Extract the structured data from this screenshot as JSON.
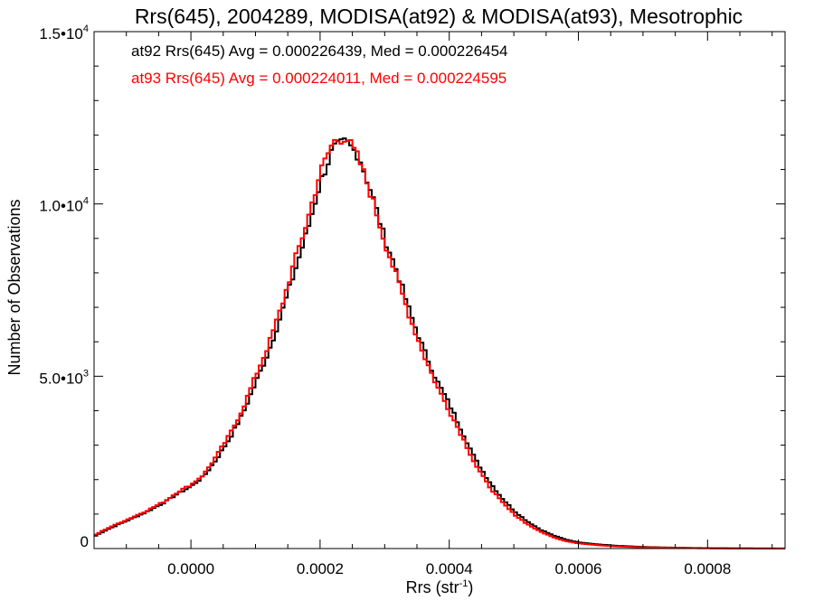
{
  "chart_data": {
    "type": "line",
    "title": "Rrs(645), 2004289, MODISA(at92) & MODISA(at93), Mesotrophic",
    "xlabel_base": "Rrs (str",
    "xlabel_sup": "-1",
    "xlabel_close": ")",
    "ylabel": "Number of Observations",
    "xlim": [
      -0.00015,
      0.00092
    ],
    "ylim": [
      0,
      15000
    ],
    "x_ticks": [
      {
        "value": 0.0,
        "label": "0.0000"
      },
      {
        "value": 0.0002,
        "label": "0.0002"
      },
      {
        "value": 0.0004,
        "label": "0.0004"
      },
      {
        "value": 0.0006,
        "label": "0.0006"
      },
      {
        "value": 0.0008,
        "label": "0.0008"
      }
    ],
    "y_ticks": [
      {
        "value": 0,
        "label": "0",
        "sup": ""
      },
      {
        "value": 5000,
        "label": "5.0•10",
        "sup": "3"
      },
      {
        "value": 10000,
        "label": "1.0•10",
        "sup": "4"
      },
      {
        "value": 15000,
        "label": "1.5•10",
        "sup": "4"
      }
    ],
    "bin_width": 5e-06,
    "x": [
      -0.00015,
      -0.00013,
      -0.0001,
      -7e-05,
      -4e-05,
      -2e-05,
      0.0,
      2e-05,
      4e-05,
      6e-05,
      8e-05,
      0.0001,
      0.00012,
      0.00014,
      0.00016,
      0.00018,
      0.0002,
      0.00022,
      0.00024,
      0.00026,
      0.00028,
      0.0003,
      0.00032,
      0.00034,
      0.00036,
      0.00038,
      0.0004,
      0.00042,
      0.00044,
      0.00046,
      0.00048,
      0.0005,
      0.00052,
      0.00054,
      0.00056,
      0.00058,
      0.0006,
      0.00063,
      0.00066,
      0.0007,
      0.00075,
      0.0008,
      0.00085,
      0.00092
    ],
    "series": [
      {
        "name": "at92",
        "color": "#000000",
        "values": [
          350,
          550,
          800,
          1050,
          1350,
          1600,
          1800,
          2100,
          2600,
          3200,
          3900,
          4800,
          5700,
          6800,
          8000,
          9200,
          10600,
          11600,
          11800,
          11400,
          10300,
          9000,
          8000,
          6800,
          5800,
          4900,
          4200,
          3400,
          2600,
          2000,
          1500,
          1100,
          800,
          560,
          390,
          260,
          180,
          120,
          80,
          45,
          25,
          12,
          6,
          2
        ]
      },
      {
        "name": "at93",
        "color": "#ff0000",
        "values": [
          380,
          580,
          830,
          1080,
          1380,
          1650,
          1850,
          2150,
          2700,
          3300,
          4050,
          5000,
          5900,
          7000,
          8300,
          9500,
          10900,
          11800,
          11950,
          11300,
          10200,
          8900,
          7800,
          6650,
          5650,
          4750,
          4000,
          3250,
          2450,
          1850,
          1380,
          1000,
          720,
          500,
          340,
          220,
          150,
          100,
          60,
          35,
          18,
          9,
          4,
          1
        ]
      }
    ],
    "legend": [
      {
        "text": "at92 Rrs(645) Avg = 0.000226439, Med = 0.000226454",
        "color": "#000000"
      },
      {
        "text": "at93 Rrs(645) Avg = 0.000224011, Med = 0.000224595",
        "color": "#ff0000"
      }
    ],
    "legend_position": "top-left",
    "grid": false
  }
}
